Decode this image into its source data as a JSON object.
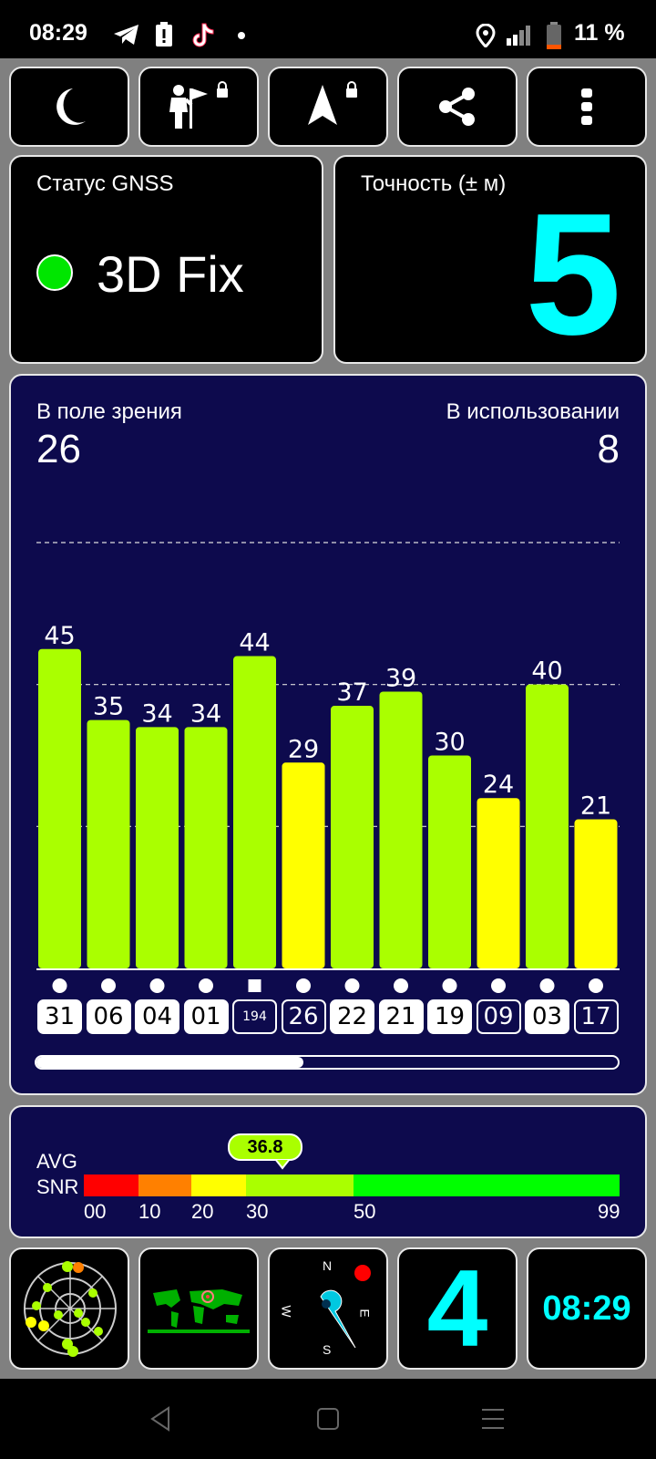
{
  "status_bar": {
    "time": "08:29",
    "battery": "11 %",
    "icons": [
      "telegram-icon",
      "alert-icon",
      "tiktok-icon",
      "dot-icon",
      "location-icon",
      "signal-icon",
      "battery-icon"
    ]
  },
  "toolbar": {
    "buttons": [
      "night-mode-icon",
      "poi-flag-icon",
      "navigation-arrow-icon",
      "share-icon",
      "more-vert-icon"
    ]
  },
  "gnss": {
    "label": "Статус GNSS",
    "status": "3D Fix",
    "status_color": "#00e600"
  },
  "accuracy": {
    "label": "Точность (± м)",
    "value": "5",
    "color": "#00ffff"
  },
  "satellites": {
    "in_view_label": "В поле зрения",
    "in_view": "26",
    "in_use_label": "В использовании",
    "in_use": "8"
  },
  "chart_data": {
    "type": "bar",
    "categories": [
      "31",
      "06",
      "04",
      "01",
      "194",
      "26",
      "22",
      "21",
      "19",
      "09",
      "03",
      "17"
    ],
    "values": [
      45,
      35,
      34,
      34,
      44,
      29,
      37,
      39,
      30,
      24,
      40,
      21
    ],
    "colors": [
      "#aaff00",
      "#aaff00",
      "#aaff00",
      "#aaff00",
      "#aaff00",
      "#ffff00",
      "#aaff00",
      "#aaff00",
      "#aaff00",
      "#ffff00",
      "#aaff00",
      "#ffff00"
    ],
    "used": [
      true,
      true,
      true,
      true,
      false,
      false,
      true,
      true,
      true,
      false,
      true,
      false
    ],
    "markers": [
      "circle",
      "circle",
      "circle",
      "circle",
      "square",
      "circle",
      "circle",
      "circle",
      "circle",
      "circle",
      "circle",
      "circle"
    ],
    "ylim": [
      0,
      60
    ],
    "gridlines": [
      20,
      40,
      60
    ],
    "scroll_position": 0.46
  },
  "avg_snr": {
    "label_line1": "AVG",
    "label_line2": "SNR",
    "value": "36.8",
    "scale_ticks": [
      "00",
      "10",
      "20",
      "30",
      "50",
      "99"
    ],
    "bands": [
      {
        "color": "#ff0000"
      },
      {
        "color": "#ff8000"
      },
      {
        "color": "#ffff00"
      },
      {
        "color": "#aaff00"
      },
      {
        "color": "#00ff00"
      }
    ]
  },
  "widgets": {
    "lock_count": "4",
    "lock_count_color": "#00ffff",
    "clock": "08:29",
    "compass": {
      "n": "N",
      "e": "E",
      "s": "S",
      "w": "W"
    }
  },
  "nav": {
    "icons": [
      "back-icon",
      "home-icon",
      "recents-icon"
    ]
  }
}
